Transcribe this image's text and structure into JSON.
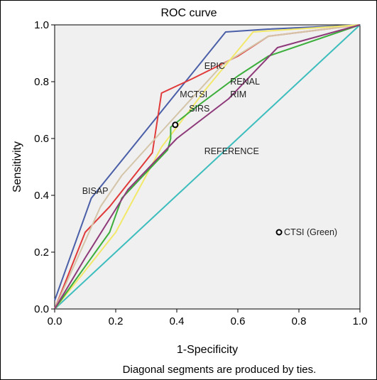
{
  "chart_data": {
    "type": "line",
    "title": "ROC curve",
    "xlabel": "1-Specificity",
    "ylabel": "Sensitivity",
    "xlim": [
      0,
      1
    ],
    "ylim": [
      0,
      1
    ],
    "xticks": [
      "0.0",
      "0.2",
      "0.4",
      "0.6",
      "0.8",
      "1.0"
    ],
    "yticks": [
      "0.0",
      "0.2",
      "0.4",
      "0.6",
      "0.8",
      "1.0"
    ],
    "grid": false,
    "legend": "none",
    "plot_background": "#f0f0f0",
    "footnote": "Diagonal segments are produced by ties.",
    "series": [
      {
        "name": "REFERENCE",
        "color": "#3dbdbd",
        "points": [
          [
            0,
            0
          ],
          [
            1,
            1
          ]
        ]
      },
      {
        "name": "BISAP",
        "color": "#4a5fa8",
        "points": [
          [
            0,
            0.03
          ],
          [
            0.12,
            0.39
          ],
          [
            0.56,
            0.975
          ],
          [
            0.7,
            0.985
          ],
          [
            1,
            1
          ]
        ]
      },
      {
        "color": "#e03a3a",
        "points": [
          [
            0,
            0
          ],
          [
            0.1,
            0.27
          ],
          [
            0.18,
            0.36
          ],
          [
            0.32,
            0.55
          ],
          [
            0.35,
            0.76
          ],
          [
            0.45,
            0.81
          ],
          [
            0.6,
            0.89
          ],
          [
            0.7,
            0.96
          ],
          [
            1,
            1
          ]
        ]
      },
      {
        "color": "#d4c4a8",
        "points": [
          [
            0,
            0
          ],
          [
            0.15,
            0.36
          ],
          [
            0.22,
            0.47
          ],
          [
            0.38,
            0.66
          ],
          [
            0.55,
            0.86
          ],
          [
            0.7,
            0.96
          ],
          [
            1,
            1
          ]
        ]
      },
      {
        "color": "#f2e86a",
        "points": [
          [
            0,
            0
          ],
          [
            0.2,
            0.27
          ],
          [
            0.35,
            0.57
          ],
          [
            0.5,
            0.78
          ],
          [
            0.65,
            0.975
          ],
          [
            1,
            1
          ]
        ]
      },
      {
        "color": "#3cae3c",
        "points": [
          [
            0,
            0
          ],
          [
            0.18,
            0.27
          ],
          [
            0.19,
            0.3
          ],
          [
            0.22,
            0.39
          ],
          [
            0.37,
            0.56
          ],
          [
            0.38,
            0.6
          ],
          [
            0.38,
            0.64
          ],
          [
            0.45,
            0.7
          ],
          [
            0.6,
            0.82
          ],
          [
            0.7,
            0.89
          ],
          [
            1,
            1
          ]
        ]
      },
      {
        "color": "#8e3a7a",
        "points": [
          [
            0,
            0
          ],
          [
            0.1,
            0.18
          ],
          [
            0.24,
            0.42
          ],
          [
            0.4,
            0.6
          ],
          [
            0.57,
            0.74
          ],
          [
            0.73,
            0.92
          ],
          [
            1,
            1
          ]
        ]
      }
    ],
    "markers": [
      {
        "x": 0.395,
        "y": 0.648
      },
      {
        "x": 0.735,
        "y": 0.27,
        "label": "CTSI (Green)"
      }
    ],
    "annotations": [
      {
        "text": "EPIC",
        "x": 0.49,
        "y": 0.845
      },
      {
        "text": "RENAL",
        "x": 0.575,
        "y": 0.79
      },
      {
        "text": "MCTSI",
        "x": 0.41,
        "y": 0.745
      },
      {
        "text": "RIM",
        "x": 0.575,
        "y": 0.745
      },
      {
        "text": "SIRS",
        "x": 0.44,
        "y": 0.695
      },
      {
        "text": "REFERENCE",
        "x": 0.49,
        "y": 0.545
      },
      {
        "text": "BISAP",
        "x": 0.09,
        "y": 0.405
      }
    ]
  }
}
